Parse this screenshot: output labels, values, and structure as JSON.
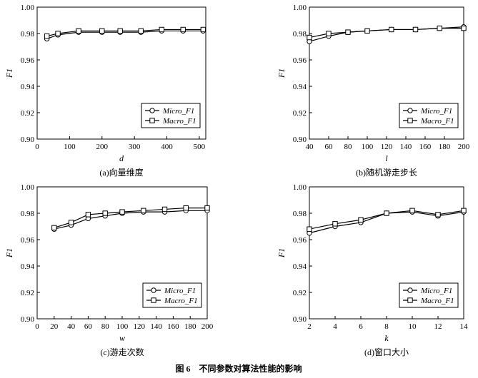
{
  "figure_caption": "图 6　不同参数对算法性能的影响",
  "chart_data": [
    {
      "type": "line",
      "caption": "(a)向量维度",
      "xlabel": "d",
      "ylabel": "F1",
      "xlim": [
        0,
        520
      ],
      "ylim": [
        0.9,
        1.0
      ],
      "xticks": [
        0,
        100,
        200,
        300,
        400,
        500
      ],
      "yticks": [
        0.9,
        0.92,
        0.94,
        0.96,
        0.98,
        1.0
      ],
      "x": [
        30,
        64,
        128,
        200,
        256,
        320,
        384,
        450,
        512
      ],
      "series": [
        {
          "name": "Micro_F1",
          "marker": "circle",
          "values": [
            0.976,
            0.979,
            0.981,
            0.981,
            0.981,
            0.981,
            0.982,
            0.982,
            0.982
          ]
        },
        {
          "name": "Macro_F1",
          "marker": "square",
          "values": [
            0.978,
            0.98,
            0.982,
            0.982,
            0.982,
            0.982,
            0.983,
            0.983,
            0.983
          ]
        }
      ],
      "legend": "lower-right"
    },
    {
      "type": "line",
      "caption": "(b)随机游走步长",
      "xlabel": "l",
      "ylabel": "F1",
      "xlim": [
        40,
        200
      ],
      "ylim": [
        0.9,
        1.0
      ],
      "xticks": [
        40,
        60,
        80,
        100,
        120,
        140,
        160,
        180,
        200
      ],
      "yticks": [
        0.9,
        0.92,
        0.94,
        0.96,
        0.98,
        1.0
      ],
      "x": [
        40,
        60,
        80,
        100,
        125,
        150,
        175,
        200
      ],
      "series": [
        {
          "name": "Micro_F1",
          "marker": "circle",
          "values": [
            0.974,
            0.978,
            0.981,
            0.982,
            0.983,
            0.983,
            0.984,
            0.985
          ]
        },
        {
          "name": "Macro_F1",
          "marker": "square",
          "values": [
            0.977,
            0.98,
            0.981,
            0.982,
            0.983,
            0.983,
            0.984,
            0.984
          ]
        }
      ],
      "legend": "lower-right"
    },
    {
      "type": "line",
      "caption": "(c)游走次数",
      "xlabel": "w",
      "ylabel": "F1",
      "xlim": [
        0,
        200
      ],
      "ylim": [
        0.9,
        1.0
      ],
      "xticks": [
        0,
        20,
        40,
        60,
        80,
        100,
        120,
        140,
        160,
        180,
        200
      ],
      "yticks": [
        0.9,
        0.92,
        0.94,
        0.96,
        0.98,
        1.0
      ],
      "x": [
        20,
        40,
        60,
        80,
        100,
        125,
        150,
        175,
        200
      ],
      "series": [
        {
          "name": "Micro_F1",
          "marker": "circle",
          "values": [
            0.968,
            0.971,
            0.976,
            0.978,
            0.98,
            0.981,
            0.981,
            0.982,
            0.982
          ]
        },
        {
          "name": "Macro_F1",
          "marker": "square",
          "values": [
            0.969,
            0.973,
            0.979,
            0.98,
            0.981,
            0.982,
            0.983,
            0.984,
            0.984
          ]
        }
      ],
      "legend": "lower-right"
    },
    {
      "type": "line",
      "caption": "(d)窗口大小",
      "xlabel": "k",
      "ylabel": "F1",
      "xlim": [
        2,
        14
      ],
      "ylim": [
        0.9,
        1.0
      ],
      "xticks": [
        2,
        4,
        6,
        8,
        10,
        12,
        14
      ],
      "yticks": [
        0.9,
        0.92,
        0.94,
        0.96,
        0.98,
        1.0
      ],
      "x": [
        2,
        4,
        6,
        8,
        10,
        12,
        14
      ],
      "series": [
        {
          "name": "Micro_F1",
          "marker": "circle",
          "values": [
            0.965,
            0.97,
            0.973,
            0.98,
            0.981,
            0.978,
            0.981
          ]
        },
        {
          "name": "Macro_F1",
          "marker": "square",
          "values": [
            0.968,
            0.972,
            0.975,
            0.98,
            0.982,
            0.979,
            0.982
          ]
        }
      ],
      "legend": "lower-right"
    }
  ]
}
